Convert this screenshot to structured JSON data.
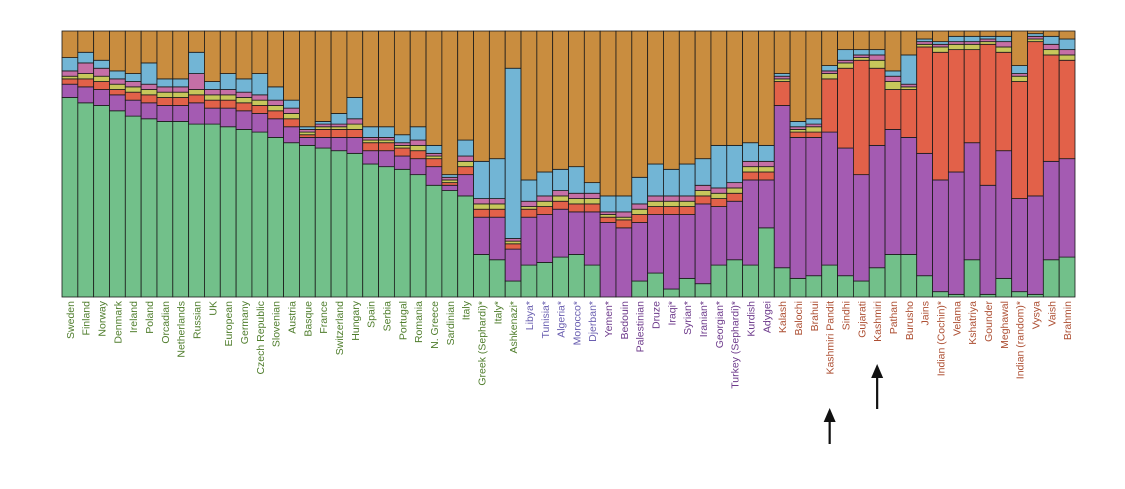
{
  "chart_data": {
    "type": "stacked-bar",
    "orientation": "vertical",
    "normalized": true,
    "ylim": [
      0,
      1
    ],
    "title": "",
    "xlabel": "",
    "ylabel": "",
    "component_colors": {
      "green": "#72c08a",
      "purple": "#a45bb2",
      "red": "#e26149",
      "yellow": "#c7c75b",
      "pink": "#c56fa6",
      "blue": "#72b5d5",
      "orange": "#c98d3f"
    },
    "stack_order": [
      "green",
      "purple",
      "red",
      "yellow",
      "pink",
      "blue",
      "orange"
    ],
    "label_colors": {
      "european": "#4f7d2c",
      "middle_east": "#6d3a8b",
      "north_african": "#6a5fb0",
      "south_asian": "#ad4f33"
    },
    "categories": [
      {
        "name": "Sweden",
        "group": "european",
        "shares": [
          0.75,
          0.05,
          0.02,
          0.01,
          0.02,
          0.05,
          0.1
        ]
      },
      {
        "name": "Finland",
        "group": "european",
        "shares": [
          0.73,
          0.06,
          0.03,
          0.02,
          0.04,
          0.04,
          0.08
        ]
      },
      {
        "name": "Norway",
        "group": "european",
        "shares": [
          0.72,
          0.06,
          0.03,
          0.02,
          0.03,
          0.03,
          0.11
        ]
      },
      {
        "name": "Denmark",
        "group": "european",
        "shares": [
          0.7,
          0.06,
          0.02,
          0.02,
          0.02,
          0.03,
          0.15
        ]
      },
      {
        "name": "Ireland",
        "group": "european",
        "shares": [
          0.68,
          0.06,
          0.03,
          0.02,
          0.02,
          0.03,
          0.16
        ]
      },
      {
        "name": "Poland",
        "group": "european",
        "shares": [
          0.67,
          0.06,
          0.03,
          0.02,
          0.02,
          0.08,
          0.12
        ]
      },
      {
        "name": "Orcadian",
        "group": "european",
        "shares": [
          0.66,
          0.06,
          0.03,
          0.02,
          0.02,
          0.03,
          0.18
        ]
      },
      {
        "name": "Netherlands",
        "group": "european",
        "shares": [
          0.66,
          0.06,
          0.03,
          0.02,
          0.02,
          0.03,
          0.18
        ]
      },
      {
        "name": "Russian",
        "group": "european",
        "shares": [
          0.65,
          0.08,
          0.03,
          0.02,
          0.06,
          0.08,
          0.08
        ]
      },
      {
        "name": "UK",
        "group": "european",
        "shares": [
          0.65,
          0.06,
          0.03,
          0.02,
          0.02,
          0.03,
          0.19
        ]
      },
      {
        "name": "European",
        "group": "european",
        "shares": [
          0.64,
          0.07,
          0.03,
          0.02,
          0.02,
          0.06,
          0.16
        ]
      },
      {
        "name": "Germany",
        "group": "european",
        "shares": [
          0.63,
          0.07,
          0.03,
          0.02,
          0.02,
          0.05,
          0.18
        ]
      },
      {
        "name": "Czech Republic",
        "group": "european",
        "shares": [
          0.62,
          0.07,
          0.03,
          0.02,
          0.02,
          0.08,
          0.16
        ]
      },
      {
        "name": "Slovenian",
        "group": "european",
        "shares": [
          0.6,
          0.07,
          0.03,
          0.02,
          0.02,
          0.05,
          0.21
        ]
      },
      {
        "name": "Austria",
        "group": "european",
        "shares": [
          0.58,
          0.06,
          0.03,
          0.02,
          0.02,
          0.03,
          0.26
        ]
      },
      {
        "name": "Basque",
        "group": "european",
        "shares": [
          0.57,
          0.03,
          0.01,
          0.01,
          0.01,
          0.01,
          0.36
        ]
      },
      {
        "name": "France",
        "group": "european",
        "shares": [
          0.56,
          0.04,
          0.03,
          0.01,
          0.01,
          0.01,
          0.34
        ]
      },
      {
        "name": "Switzerland",
        "group": "european",
        "shares": [
          0.55,
          0.05,
          0.03,
          0.01,
          0.01,
          0.04,
          0.31
        ]
      },
      {
        "name": "Hungary",
        "group": "european",
        "shares": [
          0.54,
          0.06,
          0.03,
          0.02,
          0.02,
          0.08,
          0.25
        ]
      },
      {
        "name": "Spain",
        "group": "european",
        "shares": [
          0.5,
          0.05,
          0.03,
          0.01,
          0.01,
          0.04,
          0.36
        ]
      },
      {
        "name": "Serbia",
        "group": "european",
        "shares": [
          0.49,
          0.06,
          0.03,
          0.01,
          0.01,
          0.04,
          0.36
        ]
      },
      {
        "name": "Portugal",
        "group": "european",
        "shares": [
          0.48,
          0.05,
          0.03,
          0.01,
          0.01,
          0.03,
          0.39
        ]
      },
      {
        "name": "Romania",
        "group": "european",
        "shares": [
          0.46,
          0.06,
          0.03,
          0.02,
          0.02,
          0.05,
          0.36
        ]
      },
      {
        "name": "N. Greece",
        "group": "european",
        "shares": [
          0.42,
          0.07,
          0.03,
          0.01,
          0.01,
          0.03,
          0.43
        ]
      },
      {
        "name": "Sardinian",
        "group": "european",
        "shares": [
          0.4,
          0.02,
          0.01,
          0.01,
          0.01,
          0.01,
          0.54
        ]
      },
      {
        "name": "Italy",
        "group": "european",
        "shares": [
          0.38,
          0.08,
          0.03,
          0.02,
          0.02,
          0.06,
          0.41
        ]
      },
      {
        "name": "Greek (Sephardi)*",
        "group": "european",
        "shares": [
          0.16,
          0.14,
          0.03,
          0.02,
          0.02,
          0.14,
          0.49
        ]
      },
      {
        "name": "Italy*",
        "group": "european",
        "shares": [
          0.14,
          0.16,
          0.03,
          0.02,
          0.02,
          0.15,
          0.48
        ]
      },
      {
        "name": "Ashkenazi*",
        "group": "european",
        "shares": [
          0.06,
          0.12,
          0.02,
          0.01,
          0.01,
          0.64,
          0.14
        ]
      },
      {
        "name": "Libya*",
        "group": "north_african",
        "shares": [
          0.12,
          0.18,
          0.03,
          0.01,
          0.02,
          0.08,
          0.56
        ]
      },
      {
        "name": "Tunisia*",
        "group": "north_african",
        "shares": [
          0.13,
          0.18,
          0.03,
          0.02,
          0.02,
          0.09,
          0.53
        ]
      },
      {
        "name": "Algeria*",
        "group": "north_african",
        "shares": [
          0.15,
          0.18,
          0.03,
          0.02,
          0.02,
          0.08,
          0.52
        ]
      },
      {
        "name": "Morocco*",
        "group": "north_african",
        "shares": [
          0.16,
          0.16,
          0.03,
          0.02,
          0.02,
          0.1,
          0.51
        ]
      },
      {
        "name": "Djerban*",
        "group": "north_african",
        "shares": [
          0.12,
          0.2,
          0.03,
          0.02,
          0.02,
          0.04,
          0.57
        ]
      },
      {
        "name": "Yemen*",
        "group": "middle_east",
        "shares": [
          0.0,
          0.28,
          0.02,
          0.01,
          0.01,
          0.06,
          0.62
        ]
      },
      {
        "name": "Bedouin",
        "group": "middle_east",
        "shares": [
          0.0,
          0.26,
          0.03,
          0.01,
          0.02,
          0.06,
          0.62
        ]
      },
      {
        "name": "Palestinian",
        "group": "middle_east",
        "shares": [
          0.06,
          0.22,
          0.03,
          0.02,
          0.02,
          0.1,
          0.55
        ]
      },
      {
        "name": "Druze",
        "group": "middle_east",
        "shares": [
          0.09,
          0.22,
          0.03,
          0.02,
          0.02,
          0.12,
          0.5
        ]
      },
      {
        "name": "Iraqi*",
        "group": "middle_east",
        "shares": [
          0.03,
          0.28,
          0.03,
          0.02,
          0.02,
          0.1,
          0.52
        ]
      },
      {
        "name": "Syrian*",
        "group": "middle_east",
        "shares": [
          0.07,
          0.24,
          0.03,
          0.02,
          0.02,
          0.12,
          0.5
        ]
      },
      {
        "name": "Iranian*",
        "group": "middle_east",
        "shares": [
          0.05,
          0.3,
          0.03,
          0.02,
          0.02,
          0.1,
          0.48
        ]
      },
      {
        "name": "Georgian*",
        "group": "middle_east",
        "shares": [
          0.12,
          0.22,
          0.03,
          0.02,
          0.02,
          0.16,
          0.43
        ]
      },
      {
        "name": "Turkey (Sephardi)*",
        "group": "middle_east",
        "shares": [
          0.14,
          0.22,
          0.03,
          0.02,
          0.02,
          0.14,
          0.43
        ]
      },
      {
        "name": "Kurdish",
        "group": "middle_east",
        "shares": [
          0.12,
          0.32,
          0.03,
          0.02,
          0.02,
          0.07,
          0.42
        ]
      },
      {
        "name": "Adygei",
        "group": "middle_east",
        "shares": [
          0.26,
          0.18,
          0.03,
          0.02,
          0.02,
          0.06,
          0.43
        ]
      },
      {
        "name": "Kalash",
        "group": "south_asian",
        "shares": [
          0.11,
          0.61,
          0.09,
          0.01,
          0.01,
          0.01,
          0.16
        ]
      },
      {
        "name": "Balochi",
        "group": "south_asian",
        "shares": [
          0.07,
          0.53,
          0.02,
          0.01,
          0.01,
          0.02,
          0.34
        ]
      },
      {
        "name": "Brahui",
        "group": "south_asian",
        "shares": [
          0.08,
          0.52,
          0.02,
          0.02,
          0.01,
          0.02,
          0.33
        ]
      },
      {
        "name": "Kashmiri Pandit",
        "group": "south_asian",
        "shares": [
          0.12,
          0.5,
          0.2,
          0.02,
          0.01,
          0.02,
          0.13
        ]
      },
      {
        "name": "Sindhi",
        "group": "south_asian",
        "shares": [
          0.08,
          0.48,
          0.3,
          0.02,
          0.01,
          0.04,
          0.07
        ]
      },
      {
        "name": "Gujarati",
        "group": "south_asian",
        "shares": [
          0.06,
          0.4,
          0.43,
          0.01,
          0.01,
          0.02,
          0.07
        ]
      },
      {
        "name": "Kashmiri",
        "group": "south_asian",
        "shares": [
          0.11,
          0.46,
          0.29,
          0.03,
          0.02,
          0.02,
          0.07
        ]
      },
      {
        "name": "Pathan",
        "group": "south_asian",
        "shares": [
          0.16,
          0.47,
          0.15,
          0.03,
          0.02,
          0.02,
          0.15
        ]
      },
      {
        "name": "Burusho",
        "group": "south_asian",
        "shares": [
          0.16,
          0.44,
          0.18,
          0.01,
          0.01,
          0.11,
          0.09
        ]
      },
      {
        "name": "Jains",
        "group": "south_asian",
        "shares": [
          0.08,
          0.46,
          0.4,
          0.01,
          0.01,
          0.01,
          0.03
        ]
      },
      {
        "name": "Indian (Cochin)*",
        "group": "south_asian",
        "shares": [
          0.02,
          0.42,
          0.48,
          0.02,
          0.01,
          0.01,
          0.04
        ]
      },
      {
        "name": "Velama",
        "group": "south_asian",
        "shares": [
          0.01,
          0.46,
          0.46,
          0.02,
          0.01,
          0.02,
          0.02
        ]
      },
      {
        "name": "Kshatriya",
        "group": "south_asian",
        "shares": [
          0.14,
          0.44,
          0.35,
          0.02,
          0.01,
          0.02,
          0.02
        ]
      },
      {
        "name": "Gounder",
        "group": "south_asian",
        "shares": [
          0.01,
          0.41,
          0.53,
          0.01,
          0.01,
          0.01,
          0.02
        ]
      },
      {
        "name": "Meghawal",
        "group": "south_asian",
        "shares": [
          0.07,
          0.48,
          0.37,
          0.02,
          0.02,
          0.02,
          0.02
        ]
      },
      {
        "name": "Indian (random)*",
        "group": "south_asian",
        "shares": [
          0.02,
          0.35,
          0.44,
          0.02,
          0.01,
          0.03,
          0.13
        ]
      },
      {
        "name": "Vysya",
        "group": "south_asian",
        "shares": [
          0.01,
          0.37,
          0.58,
          0.01,
          0.01,
          0.01,
          0.01
        ]
      },
      {
        "name": "Vaish",
        "group": "south_asian",
        "shares": [
          0.14,
          0.37,
          0.4,
          0.02,
          0.02,
          0.03,
          0.02
        ]
      },
      {
        "name": "Brahmin",
        "group": "south_asian",
        "shares": [
          0.15,
          0.37,
          0.37,
          0.02,
          0.02,
          0.04,
          0.03
        ]
      }
    ],
    "annotations": [
      {
        "type": "arrow",
        "target": "Kashmiri Pandit",
        "direction": "up"
      },
      {
        "type": "arrow",
        "target": "Kashmiri",
        "direction": "up"
      }
    ]
  }
}
